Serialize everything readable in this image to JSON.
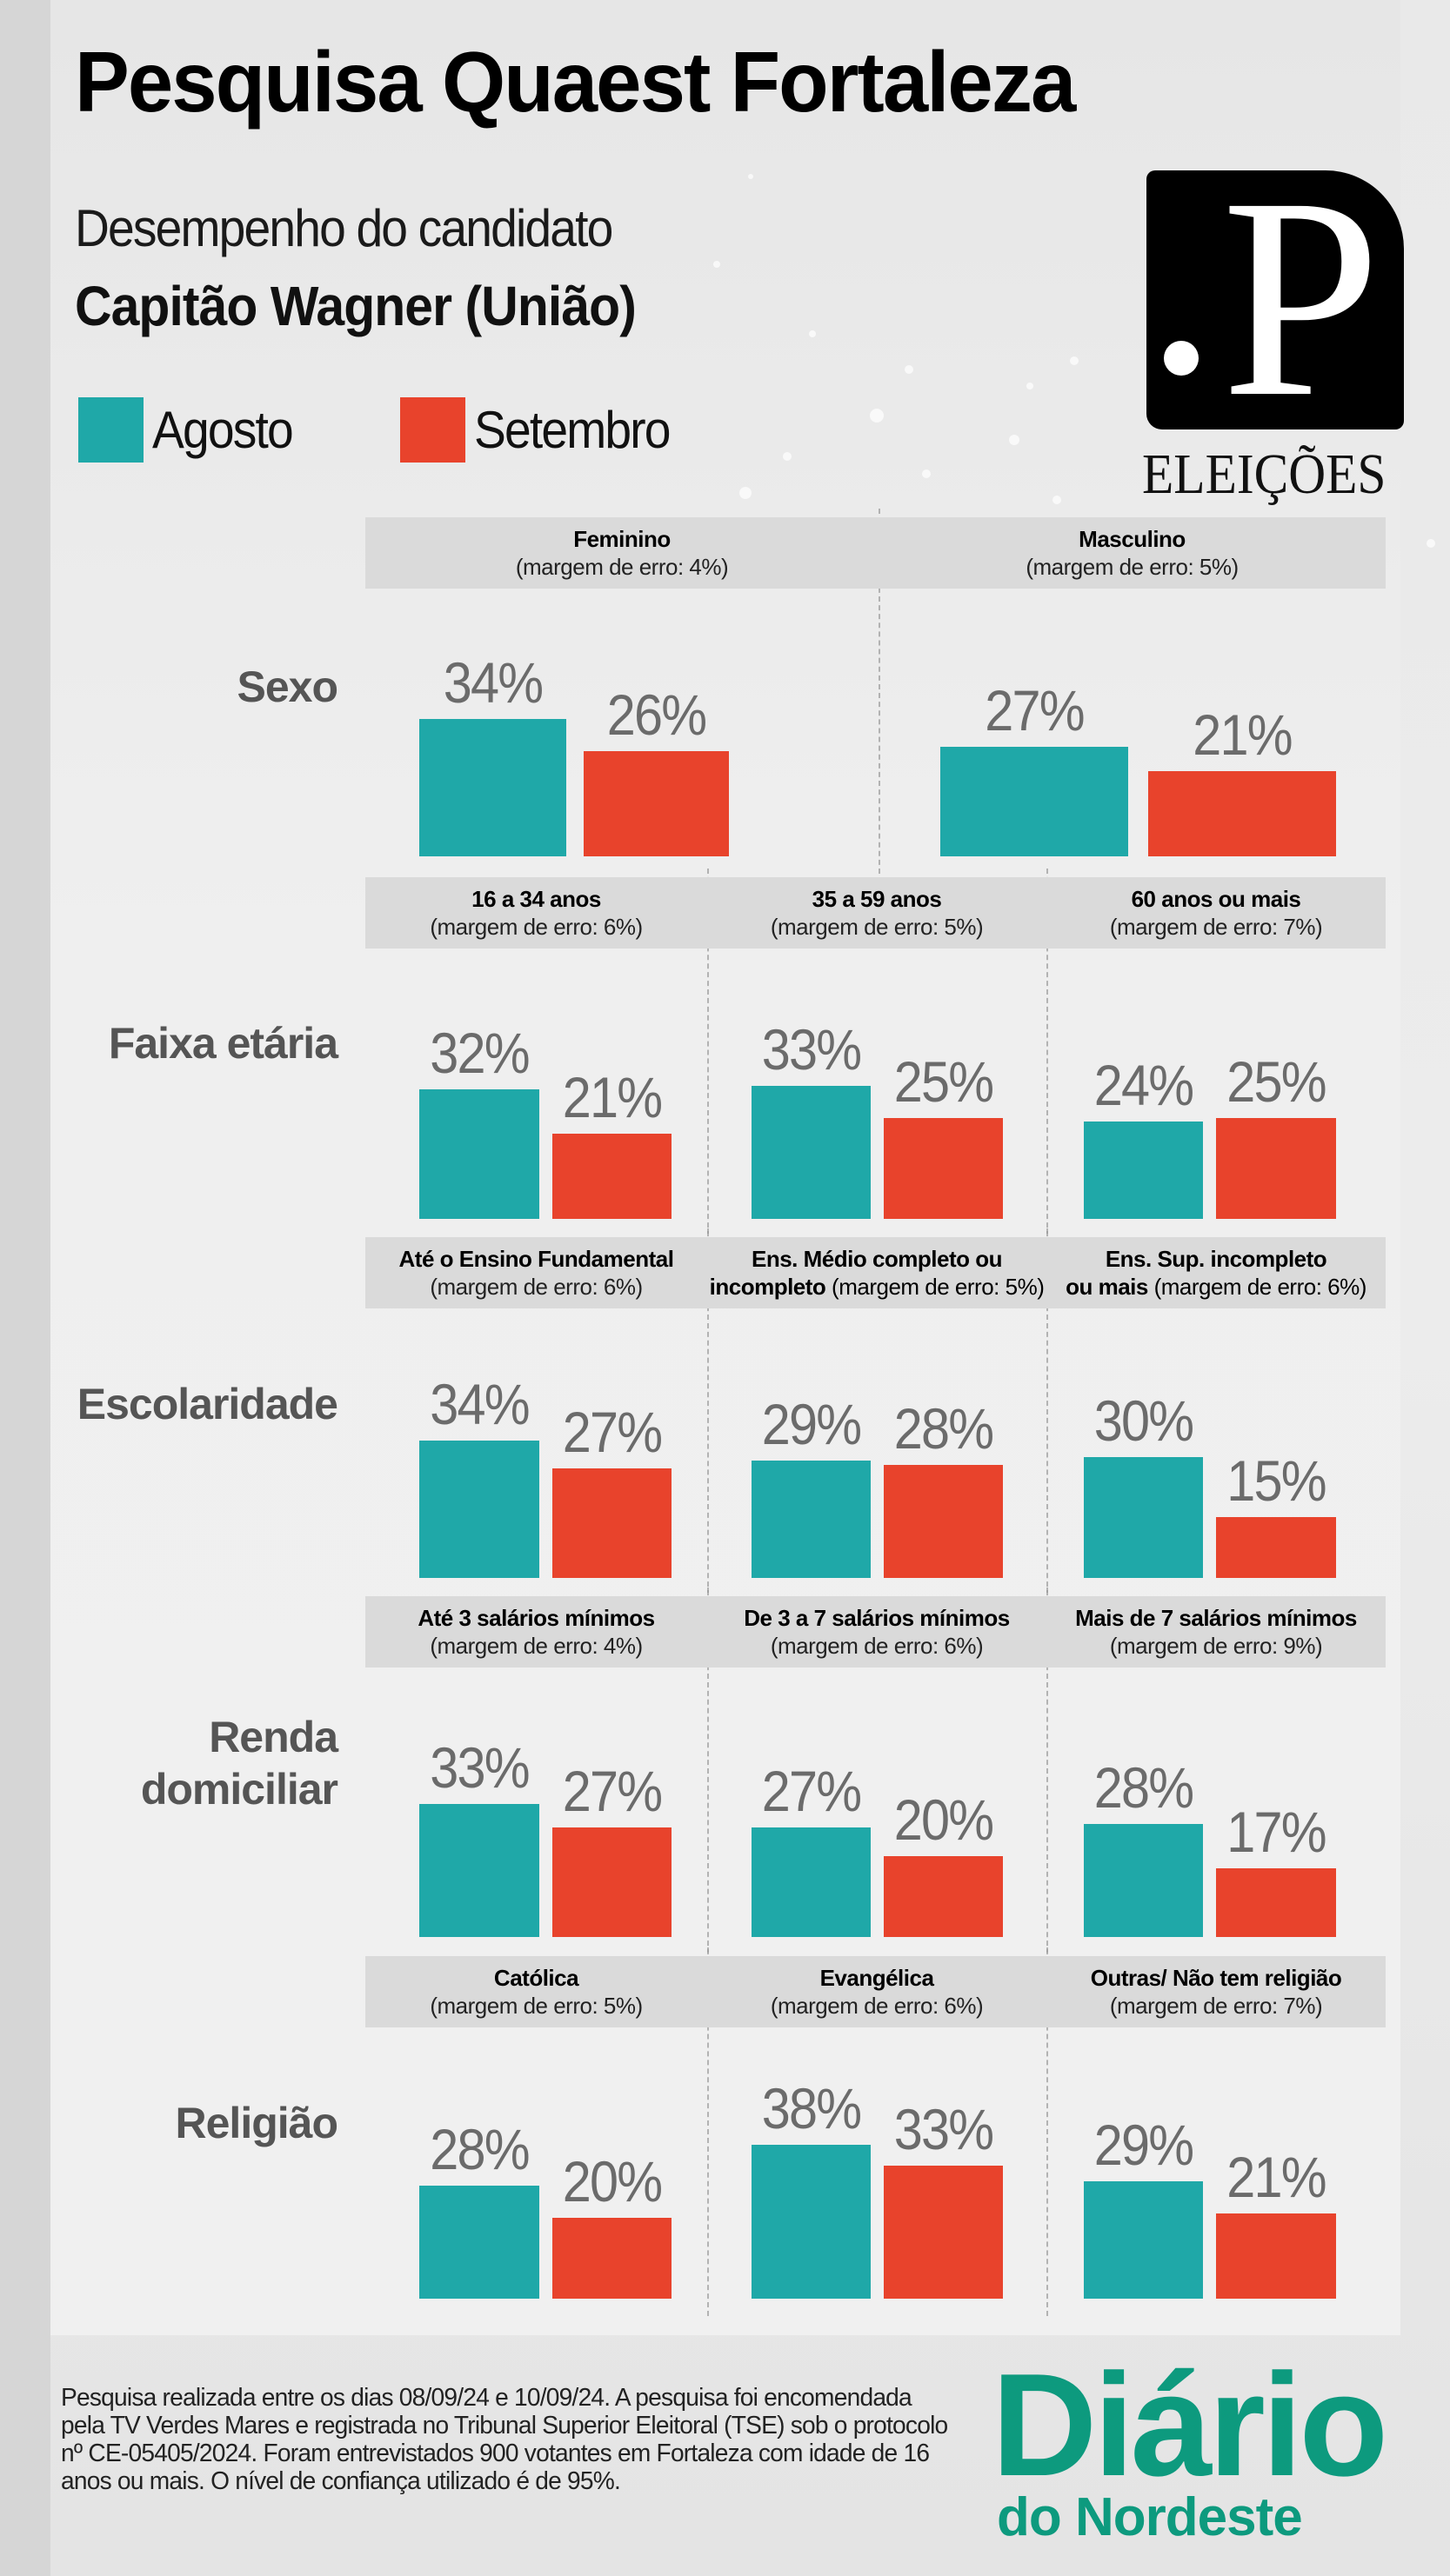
{
  "header": {
    "title": "Pesquisa Quaest Fortaleza",
    "subtitle": "Desempenho do candidato",
    "candidate": "Capitão Wagner (União)"
  },
  "legend": [
    {
      "label": "Agosto",
      "color": "#1fa8a8"
    },
    {
      "label": "Setembro",
      "color": "#e8432c"
    }
  ],
  "brand": {
    "op_logo_letter": "P",
    "op_logo_caption": "ELEIÇÕES",
    "dn_logo_line1": "Diário",
    "dn_logo_line2": "do Nordeste",
    "dn_color": "#0d9a7e"
  },
  "footnote": "Pesquisa realizada entre os dias 08/09/24 e  10/09/24. A pesquisa foi encomendada pela TV Verdes Mares e registrada no Tribunal Superior Eleitoral (TSE) sob o protocolo nº CE-05405/2024. Foram entrevistados 900 votantes em Fortaleza com idade de 16 anos ou mais. O nível de confiança utilizado é de 95%.",
  "chart_data": {
    "type": "bar",
    "title": "Pesquisa Quaest Fortaleza — Desempenho do candidato Capitão Wagner (União)",
    "unit": "%",
    "series_names": [
      "Agosto",
      "Setembro"
    ],
    "series_colors": [
      "#1fa8a8",
      "#e8432c"
    ],
    "ylim": [
      0,
      40
    ],
    "groups": [
      {
        "label": "Sexo",
        "categories": [
          {
            "name": "Feminino",
            "margin": "(margem de erro: 4%)",
            "values": [
              34,
              26
            ]
          },
          {
            "name": "Masculino",
            "margin": "(margem de erro: 5%)",
            "values": [
              27,
              21
            ]
          }
        ]
      },
      {
        "label": "Faixa etária",
        "categories": [
          {
            "name": "16 a 34 anos",
            "margin": "(margem de erro: 6%)",
            "values": [
              32,
              21
            ]
          },
          {
            "name": "35 a 59 anos",
            "margin": "(margem de erro: 5%)",
            "values": [
              33,
              25
            ]
          },
          {
            "name": "60 anos ou mais",
            "margin": "(margem de erro: 7%)",
            "values": [
              24,
              25
            ]
          }
        ]
      },
      {
        "label": "Escolaridade",
        "categories": [
          {
            "name": "Até o Ensino Fundamental",
            "margin": "(margem de erro: 6%)",
            "values": [
              34,
              27
            ]
          },
          {
            "name": "Ens. Médio completo ou incompleto",
            "name_line1": "Ens. Médio completo ou",
            "name_line2": "incompleto",
            "margin": "(margem de erro: 5%)",
            "values": [
              29,
              28
            ]
          },
          {
            "name": "Ens. Sup. incompleto ou mais",
            "name_line1": "Ens. Sup. incompleto",
            "name_line2": "ou mais",
            "margin": "(margem de erro: 6%)",
            "values": [
              30,
              15
            ]
          }
        ]
      },
      {
        "label": "Renda domiciliar",
        "label_line1": "Renda",
        "label_line2": "domiciliar",
        "categories": [
          {
            "name": "Até 3 salários mínimos",
            "margin": "(margem de erro: 4%)",
            "values": [
              33,
              27
            ]
          },
          {
            "name": "De 3 a 7 salários mínimos",
            "margin": "(margem de erro: 6%)",
            "values": [
              27,
              20
            ]
          },
          {
            "name": "Mais de 7 salários mínimos",
            "margin": "(margem de erro: 9%)",
            "values": [
              28,
              17
            ]
          }
        ]
      },
      {
        "label": "Religião",
        "categories": [
          {
            "name": "Católica",
            "margin": "(margem de erro: 5%)",
            "values": [
              28,
              20
            ]
          },
          {
            "name": "Evangélica",
            "margin": "(margem de erro: 6%)",
            "values": [
              38,
              33
            ]
          },
          {
            "name": "Outras/ Não tem religião",
            "margin": "(margem de erro: 7%)",
            "values": [
              29,
              21
            ]
          }
        ]
      }
    ]
  }
}
